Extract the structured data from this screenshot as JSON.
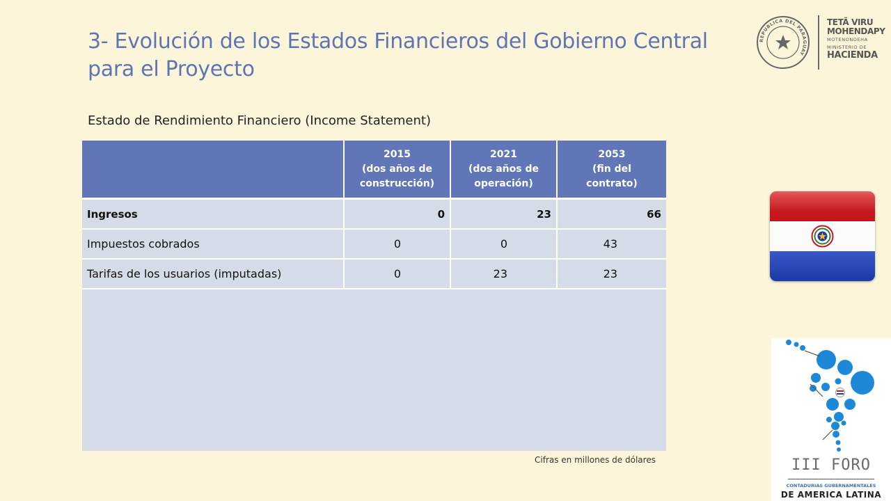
{
  "slide": {
    "title": "3- Evolución de los Estados Financieros del Gobierno Central para el Proyecto",
    "subtitle": "Estado de Rendimiento Financiero (Income Statement)",
    "note": "Cifras en millones de dólares"
  },
  "table": {
    "headers": [
      {
        "year": "2015",
        "desc1": "(dos años de",
        "desc2": "construcción)"
      },
      {
        "year": "2021",
        "desc1": "(dos años de",
        "desc2": "operación)"
      },
      {
        "year": "2053",
        "desc1": "(fin del",
        "desc2": "contrato)"
      }
    ],
    "rows": [
      {
        "label": "Ingresos",
        "v2015": "0",
        "v2021": "23",
        "v2053": "66"
      },
      {
        "label": "Impuestos cobrados",
        "v2015": "0",
        "v2021": "0",
        "v2053": "43"
      },
      {
        "label": "Tarifas de los usuarios (imputadas)",
        "v2015": "0",
        "v2021": "23",
        "v2053": "23"
      }
    ]
  },
  "logos": {
    "seal_text": "REPUBLICA DEL PARAGUAY",
    "brand_line1": "TETÃ VIRU",
    "brand_line2": "MOHENDAPY",
    "brand_line3": "MOTENONDEHA",
    "brand_line4": "MINISTERIO DE",
    "brand_line5": "HACIENDA",
    "foro_title": "III FORO",
    "foro_line2": "CONTADURIAS GUBERNAMENTALES",
    "foro_line3": "DE AMERICA LATINA"
  },
  "colors": {
    "background": "#fdf5da",
    "title": "#5d75b4",
    "table_header": "#6176b6",
    "table_body": "#d5dbe7"
  }
}
